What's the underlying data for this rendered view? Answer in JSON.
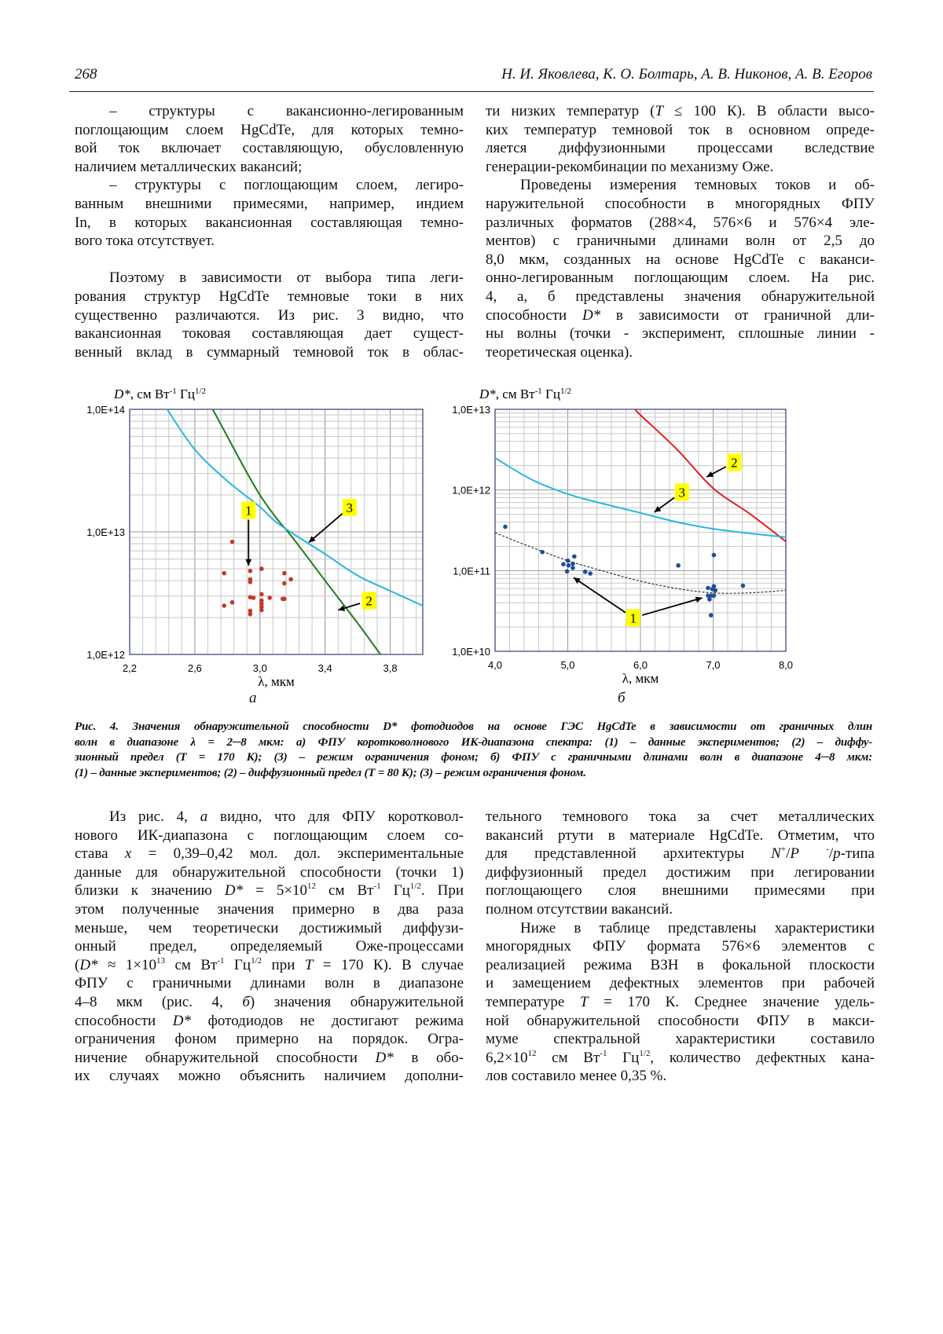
{
  "header": {
    "page_number": "268",
    "authors": "Н. И. Яковлева, К. О. Болтарь, А. В. Никонов, А. В. Егоров"
  },
  "text": {
    "top_left": [
      [
        "– структуры с вакансионно-легированным",
        "поглощающим слоем HgCdTe, для которых темно-",
        "вой ток включает составляющую, обусловленную",
        "наличием металлических вакансий;"
      ],
      [
        "– структуры с поглощающим слоем, легиро-",
        "ванным внешними примесями, например, индием",
        "In, в которых вакансионная составляющая темно-",
        "вого тока отсутствует."
      ],
      [
        "Поэтому в зависимости от выбора типа леги-",
        "рования структур HgCdTe темновые токи в них",
        "существенно различаются. Из рис. 3 видно, что",
        "вакансионная токовая составляющая дает сущест-",
        "венный вклад в суммарный  темновой ток в  облас-"
      ]
    ],
    "top_right": [
      [
        "ти низких температур (_{T} ≤ 100 К). В области высо-",
        "ких температур темновой ток в основном опреде-",
        "ляется диффузионными процессами вследствие",
        "генерации-рекомбинации по механизму Оже."
      ],
      [
        "Проведены измерения темновых токов и об-",
        "наружительной способности в многорядных ФПУ",
        "различных форматов (288×4, 576×6 и 576×4 эле-",
        "ментов) с граничными длинами волн от 2,5 до",
        "8,0 мкм, созданных на основе HgCdTe с ваканси-",
        "онно-легированным поглощающим слоем. На рис.",
        "4, а, б представлены значения обнаружительной",
        "способности _{D*} в зависимости от граничной дли-",
        "ны волны (точки - эксперимент, сплошные линии -",
        "теоретическая оценка)."
      ]
    ],
    "bottom_left": [
      [
        "Из рис. 4, _{а} видно, что для ФПУ коротковол-",
        "нового ИК-диапазона с поглощающим слоем со-",
        "става  _{x} = 0,39–0,42 мол. дол.  экспериментальные",
        "данные для обнаружительной способности (точки 1)",
        "близки к значению _{D*} = 5×10^{12} см Вт^{-1} Гц^{1/2}. При",
        "этом полученные значения примерно в два раза",
        "меньше, чем теоретически достижимый диффузи-",
        "онный предел, определяемый Оже-процессами",
        "(_{D*} ≈ 1×10^{13} см Вт^{-1} Гц^{1/2} при _{T} = 170 К). В случае",
        "ФПУ с граничными длинами волн в диапазоне",
        "4–8 мкм (рис. 4, _{б}) значения обнаружительной",
        "способности _{D*} фотодиодов не достигают режима",
        "ограничения фоном примерно на порядок. Огра-",
        "ничение обнаружительной способности _{D*} в обо-",
        "их случаях можно объяснить наличием дополни-"
      ]
    ],
    "bottom_right": [
      [
        "тельного темнового тока за счет металлических",
        "вакансий ртути в материале HgCdTe. Отметим, что",
        "для представленной архитектуры _{N}^{+}/_{P} ^{-}/_{p}-типа",
        "диффузионный предел достижим при легировании",
        "поглощающего слоя внешними примесями при",
        "полном отсутствии вакансий."
      ],
      [
        "Ниже в таблице представлены характеристики",
        "многорядных ФПУ формата 576×6 элементов с",
        "реализацией режима ВЗН в фокальной плоскости",
        "и замещением дефектных элементов при рабочей",
        "температуре _{T} = 170 К. Среднее значение удель-",
        "ной обнаружительной способности ФПУ в макси-",
        "муме спектральной характеристики составило",
        "6,2×10^{12} см Вт^{-1} Гц^{1/2}, количество дефектных кана-",
        "лов составило менее 0,35 %."
      ]
    ],
    "caption": [
      [
        "Рис. 4. Значения обнаружительной способности D* фотодиодов на основе ГЭС HgCdTe в зависимости от граничных длин",
        "волн в диапазоне λ = 2─8 мкм: а) ФПУ коротковолнового ИК-диапазона спектра: (1) – данные экспериментов; (2) – диффу-",
        "зионный предел (T = 170 К);  (3)  – режим ограничения фоном;  б)  ФПУ с граничными длинами волн в диапазоне 4─8 мкм:",
        "(1) – данные экспериментов; (2) – диффузионный предел (T = 80 К); (3) – режим ограничения фоном."
      ]
    ]
  },
  "chart_data": [
    {
      "type": "scatter",
      "panel_label": "а",
      "ylabel": "D*, см Вт^{-1} Гц^{1/2}",
      "xlabel": "λ, мкм",
      "xlim": [
        2.2,
        4.0
      ],
      "ylim": [
        1000000000000.0,
        100000000000000.0
      ],
      "yscale": "log",
      "grid": true,
      "xticks": [
        "2,2",
        "2,6",
        "3,0",
        "3,4",
        "3,8"
      ],
      "xtick_values": [
        2.2,
        2.6,
        3.0,
        3.4,
        3.8
      ],
      "yticks": [
        "1,0E+12",
        "1,0E+13",
        "1,0E+14"
      ],
      "ytick_values": [
        1000000000000.0,
        10000000000000.0,
        100000000000000.0
      ],
      "colors": {
        "points": "#c0392b",
        "curve2": "#1e7a1e",
        "curve3": "#29b6e0"
      },
      "series": [
        {
          "label": "1",
          "kind": "points",
          "x": [
            2.83,
            2.78,
            2.94,
            2.94,
            2.94,
            3.01,
            3.15,
            3.19,
            3.15,
            3.01,
            2.94,
            2.96,
            3.06,
            3.14,
            3.15,
            2.83,
            2.78,
            3.01,
            3.01,
            3.01,
            3.01,
            2.94,
            2.94
          ],
          "y": [
            8300000000000.0,
            4600000000000.0,
            4800000000000.0,
            4100000000000.0,
            3900000000000.0,
            5000000000000.0,
            4600000000000.0,
            4100000000000.0,
            3800000000000.0,
            3100000000000.0,
            2930000000000.0,
            2900000000000.0,
            2900000000000.0,
            2840000000000.0,
            2840000000000.0,
            2660000000000.0,
            2500000000000.0,
            2750000000000.0,
            2600000000000.0,
            2450000000000.0,
            2300000000000.0,
            2270000000000.0,
            2130000000000.0
          ]
        },
        {
          "label": "2",
          "kind": "line",
          "x": [
            2.71,
            2.8,
            2.9,
            3.0,
            3.1,
            3.2,
            3.4,
            3.6,
            3.74
          ],
          "y": [
            100000000000000.0,
            60000000000000.0,
            34000000000000.0,
            20000000000000.0,
            13000000000000.0,
            9000000000000.0,
            4000000000000.0,
            1800000000000.0,
            1000000000000.0
          ]
        },
        {
          "label": "3",
          "kind": "line",
          "x": [
            2.43,
            2.6,
            2.8,
            3.0,
            3.1,
            3.3,
            3.4,
            3.6,
            3.8,
            4.0
          ],
          "y": [
            100000000000000.0,
            47000000000000.0,
            26000000000000.0,
            16000000000000.0,
            12000000000000.0,
            8000000000000.0,
            6600000000000.0,
            4400000000000.0,
            3300000000000.0,
            2500000000000.0
          ]
        }
      ],
      "annotations": [
        {
          "text": "1",
          "x": 2.93,
          "y": 15000000000000.0,
          "arrow_to": [
            [
              2.93,
              5300000000000.0
            ]
          ]
        },
        {
          "text": "3",
          "x": 3.55,
          "y": 15800000000000.0,
          "arrow_to": [
            [
              3.3,
              8200000000000.0
            ]
          ]
        },
        {
          "text": "2",
          "x": 3.67,
          "y": 2750000000000.0,
          "arrow_to": [
            [
              3.48,
              2300000000000.0
            ]
          ]
        }
      ]
    },
    {
      "type": "scatter",
      "panel_label": "б",
      "ylabel": "D*, см Вт^{-1} Гц^{1/2}",
      "xlabel": "λ, мкм",
      "xlim": [
        4.0,
        8.0
      ],
      "ylim": [
        10000000000.0,
        10000000000000.0
      ],
      "yscale": "log",
      "grid": true,
      "xticks": [
        "4,0",
        "5,0",
        "6,0",
        "7,0",
        "8,0"
      ],
      "xtick_values": [
        4,
        5,
        6,
        7,
        8
      ],
      "yticks": [
        "1,0E+10",
        "1,0E+11",
        "1,0E+12",
        "1,0E+13"
      ],
      "ytick_values": [
        10000000000.0,
        100000000000.0,
        1000000000000.0,
        10000000000000.0
      ],
      "colors": {
        "points": "#1f4e9c",
        "curve2": "#e02020",
        "curve3": "#29b6e0",
        "fit": "#333333"
      },
      "series": [
        {
          "label": "1",
          "kind": "points",
          "x": [
            4.14,
            4.65,
            4.94,
            5.0,
            5.09,
            5.01,
            5.07,
            4.99,
            5.07,
            5.24,
            5.31,
            6.52,
            7.01,
            7.41,
            6.93,
            6.99,
            7.01,
            7.03,
            6.93,
            6.97,
            7.01,
            6.95,
            6.97
          ],
          "y": [
            350000000000.0,
            170000000000.0,
            120000000000.0,
            133000000000.0,
            150000000000.0,
            116000000000.0,
            122000000000.0,
            98000000000.0,
            108000000000.0,
            97000000000.0,
            92000000000.0,
            116000000000.0,
            156000000000.0,
            65000000000.0,
            61000000000.0,
            59000000000.0,
            64000000000.0,
            57000000000.0,
            49000000000.0,
            49000000000.0,
            49000000000.0,
            44000000000.0,
            28000000000.0
          ]
        },
        {
          "label": "2",
          "kind": "line",
          "x": [
            5.93,
            6.0,
            6.5,
            7.0,
            7.5,
            8.0
          ],
          "y": [
            10000000000000.0,
            8500000000000.0,
            3200000000000.0,
            1050000000000.0,
            510000000000.0,
            230000000000.0
          ]
        },
        {
          "label": "3",
          "kind": "line",
          "x": [
            4.0,
            4.5,
            5.0,
            5.5,
            6.0,
            6.5,
            7.0,
            7.5,
            8.0
          ],
          "y": [
            2500000000000.0,
            1350000000000.0,
            890000000000.0,
            670000000000.0,
            520000000000.0,
            400000000000.0,
            330000000000.0,
            290000000000.0,
            260000000000.0
          ]
        },
        {
          "kind": "dashed",
          "x": [
            4.0,
            4.5,
            5.0,
            5.5,
            6.0,
            6.5,
            7.0,
            7.5,
            8.0
          ],
          "y": [
            295000000000.0,
            195000000000.0,
            133000000000.0,
            98000000000.0,
            74000000000.0,
            60000000000.0,
            53000000000.0,
            53000000000.0,
            57000000000.0
          ]
        }
      ],
      "annotations": [
        {
          "text": "2",
          "x": 7.29,
          "y": 2200000000000.0,
          "arrow_to": [
            [
              6.91,
              1450000000000.0
            ]
          ]
        },
        {
          "text": "3",
          "x": 6.57,
          "y": 940000000000.0,
          "arrow_to": [
            [
              6.19,
              530000000000.0
            ]
          ]
        },
        {
          "text": "1",
          "x": 5.9,
          "y": 26000000000.0,
          "arrow_to": [
            [
              5.08,
              82000000000.0
            ],
            [
              6.85,
              46000000000.0
            ]
          ]
        }
      ]
    }
  ]
}
